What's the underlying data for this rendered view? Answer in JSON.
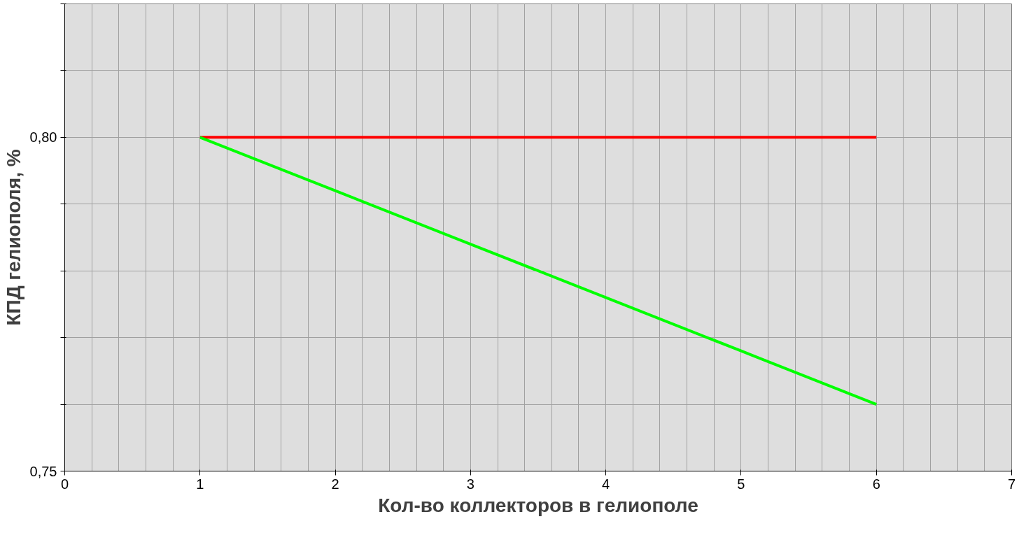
{
  "chart_data": {
    "type": "line",
    "xlabel": "Кол-во коллекторов в гелиополе",
    "ylabel": "КПД гелиополя, %",
    "x": [
      1,
      2,
      3,
      4,
      5,
      6
    ],
    "series": [
      {
        "color": "#ff0000",
        "values": [
          0.8,
          0.8,
          0.8,
          0.8,
          0.8,
          0.8
        ]
      },
      {
        "color": "#00ff00",
        "values": [
          0.8,
          0.792,
          0.784,
          0.776,
          0.768,
          0.76
        ]
      }
    ],
    "xlim": [
      0,
      7
    ],
    "xticks": [
      0,
      1,
      2,
      3,
      4,
      5,
      6,
      7
    ],
    "ylim": [
      0.75,
      0.82
    ],
    "yticks": [
      {
        "value": 0.75,
        "label": "0,75"
      },
      {
        "value": 0.76,
        "label": null
      },
      {
        "value": 0.77,
        "label": null
      },
      {
        "value": 0.78,
        "label": null
      },
      {
        "value": 0.79,
        "label": null
      },
      {
        "value": 0.8,
        "label": "0,80"
      },
      {
        "value": 0.81,
        "label": null
      },
      {
        "value": 0.82,
        "label": null
      }
    ],
    "grid": true,
    "marker": "none",
    "line_style": "solid"
  }
}
